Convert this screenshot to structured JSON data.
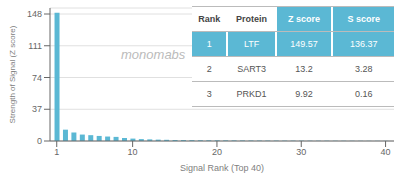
{
  "chart_data": {
    "type": "bar",
    "x": [
      1,
      2,
      3,
      4,
      5,
      6,
      7,
      8,
      9,
      10,
      11,
      12,
      13,
      14,
      15,
      16,
      17,
      18,
      19,
      20,
      21,
      22,
      23,
      24,
      25,
      26,
      27,
      28,
      29,
      30,
      31,
      32,
      33,
      34,
      35,
      36,
      37,
      38,
      39,
      40
    ],
    "values": [
      149.57,
      13.2,
      9.92,
      7.5,
      6.8,
      5.9,
      5.2,
      4.8,
      3.5,
      2.8,
      2.2,
      1.9,
      1.6,
      1.4,
      1.2,
      1.1,
      1.0,
      0.9,
      0.85,
      0.8,
      0.75,
      0.7,
      0.65,
      0.6,
      0.55,
      0.5,
      0.48,
      0.45,
      0.42,
      0.4,
      0.38,
      0.36,
      0.34,
      0.32,
      0.3,
      0.28,
      0.26,
      0.24,
      0.22,
      0.2
    ],
    "color": "#5bb8d4",
    "xlim": [
      0.2,
      41
    ],
    "xticks": [
      1,
      10,
      20,
      30,
      40
    ],
    "ylim": [
      0,
      155
    ],
    "yticks": [
      0,
      37,
      74,
      111,
      148
    ],
    "xlabel": "Signal Rank (Top 40)",
    "ylabel": "Strength of Signal (Z score)",
    "grid": true,
    "annotations": [
      "monomabs"
    ],
    "table": {
      "headers": [
        "Rank",
        "Protein",
        "Z score",
        "S score"
      ],
      "rows": [
        [
          "1",
          "LTF",
          "149.57",
          "136.37"
        ],
        [
          "2",
          "SART3",
          "13.2",
          "3.28"
        ],
        [
          "3",
          "PRKD1",
          "9.92",
          "0.16"
        ]
      ]
    }
  }
}
